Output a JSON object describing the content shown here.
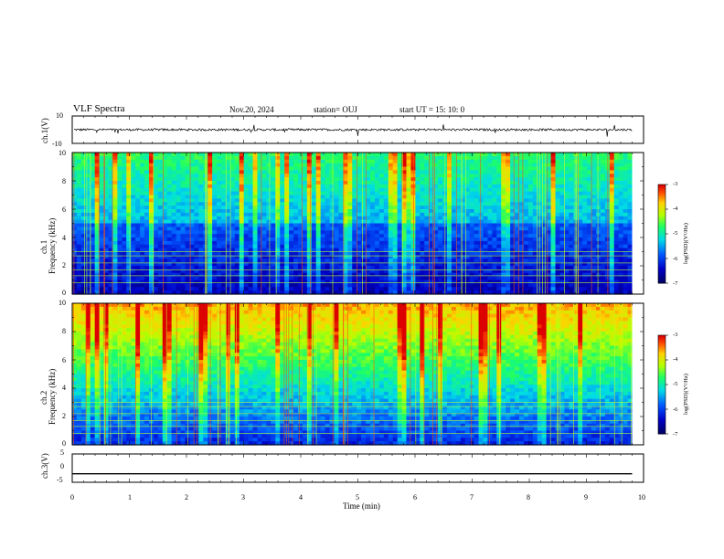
{
  "header": {
    "title": "VLF Spectra",
    "date": "Nov.20, 2024",
    "station": "station= OUJ",
    "start": "start  UT  =   15: 10: 0"
  },
  "panels": {
    "ch1": {
      "ylabel": "ch.1(V)",
      "yticks": [
        "10",
        "-10"
      ]
    },
    "spec1": {
      "ylabel_top": "ch.1",
      "ylabel_bottom": "Frequency (kHz)"
    },
    "spec2": {
      "ylabel_top": "ch.2",
      "ylabel_bottom": "Frequency (kHz)"
    },
    "ch3": {
      "ylabel": "ch.3(V)",
      "yticks": [
        "5",
        "0",
        "-5"
      ]
    }
  },
  "colorbar": {
    "label": "log(PSD)(V²/Hz)",
    "ticks": [
      "-3",
      "-4",
      "-5",
      "-6",
      "-7"
    ]
  },
  "colors": {
    "low": "#0000a0",
    "mid": "#00ff70",
    "high": "#ff2000",
    "bg": "#ffffff"
  },
  "chart_data": [
    {
      "type": "line",
      "name_axis": "ch.1(V)",
      "xlabel": "Time (min)",
      "ylabel": "ch.1(V)",
      "xlim": [
        0,
        10
      ],
      "ylim": [
        -10,
        10
      ],
      "yticks": [
        10,
        -10
      ],
      "description_values": {
        "baseline_V": 0,
        "noise_amplitude_V": 1
      }
    },
    {
      "type": "heatmap",
      "ylabel": "Frequency (kHz)",
      "channel": "ch.1",
      "xlim": [
        0,
        10
      ],
      "ylim": [
        0,
        10
      ],
      "xticks": [
        0,
        1,
        2,
        3,
        4,
        5,
        6,
        7,
        8,
        9,
        10
      ],
      "yticks": [
        0,
        2,
        4,
        6,
        8,
        10
      ],
      "zlabel": "log(PSD)(V²/Hz)",
      "zlim": [
        -7,
        -3
      ],
      "data_end_min": 9.8
    },
    {
      "type": "heatmap",
      "ylabel": "Frequency (kHz)",
      "channel": "ch.2",
      "xlim": [
        0,
        10
      ],
      "ylim": [
        0,
        10
      ],
      "xticks": [
        0,
        1,
        2,
        3,
        4,
        5,
        6,
        7,
        8,
        9,
        10
      ],
      "yticks": [
        0,
        2,
        4,
        6,
        8,
        10
      ],
      "zlabel": "log(PSD)(V²/Hz)",
      "zlim": [
        -7,
        -3
      ],
      "data_end_min": 9.8
    },
    {
      "type": "line",
      "xlabel": "Time (min)",
      "ylabel": "ch.3(V)",
      "xlim": [
        0,
        10
      ],
      "ylim": [
        -5,
        5
      ],
      "yticks": [
        5,
        0,
        -5
      ],
      "xticks": [
        "0",
        "1",
        "2",
        "3",
        "4",
        "5",
        "6",
        "7",
        "8",
        "9",
        "10"
      ],
      "series": [
        {
          "x": [
            0,
            9.8
          ],
          "y": [
            -2,
            -2
          ]
        }
      ]
    }
  ],
  "xaxis": {
    "label": "Time (min)",
    "ticks": [
      "0",
      "1",
      "2",
      "3",
      "4",
      "5",
      "6",
      "7",
      "8",
      "9",
      "10"
    ]
  },
  "freq_ticks": [
    "10",
    "8",
    "6",
    "4",
    "2",
    "0"
  ]
}
